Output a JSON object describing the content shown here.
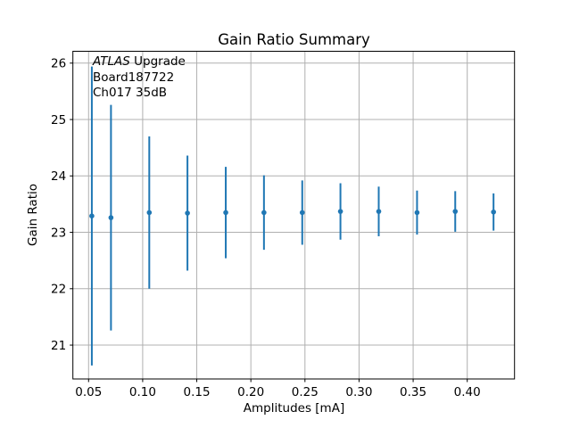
{
  "chart_data": {
    "type": "scatter",
    "title": "Gain Ratio Summary",
    "xlabel": "Amplitudes [mA]",
    "ylabel": "Gain Ratio",
    "annotation": {
      "experiment": "ATLAS",
      "experiment_suffix": " Upgrade",
      "board": "Board187722",
      "channel": "Ch017 35dB"
    },
    "x": [
      0.053,
      0.0707,
      0.1061,
      0.1414,
      0.1768,
      0.2121,
      0.2475,
      0.2828,
      0.3182,
      0.3536,
      0.3889,
      0.4243
    ],
    "y": [
      23.29,
      23.26,
      23.35,
      23.34,
      23.35,
      23.35,
      23.35,
      23.37,
      23.37,
      23.35,
      23.37,
      23.36
    ],
    "yerr": [
      2.65,
      2.0,
      1.35,
      1.02,
      0.81,
      0.66,
      0.57,
      0.5,
      0.44,
      0.39,
      0.36,
      0.33
    ],
    "xlim": [
      0.0355,
      0.4437
    ],
    "ylim": [
      20.4,
      26.21
    ],
    "xticks": {
      "values": [
        0.05,
        0.1,
        0.15,
        0.2,
        0.25,
        0.3,
        0.35,
        0.4
      ],
      "labels": [
        "0.05",
        "0.10",
        "0.15",
        "0.20",
        "0.25",
        "0.30",
        "0.35",
        "0.40"
      ]
    },
    "yticks": {
      "values": [
        21,
        22,
        23,
        24,
        25,
        26
      ],
      "labels": [
        "21",
        "22",
        "23",
        "24",
        "25",
        "26"
      ]
    },
    "grid": true,
    "legend": "none",
    "colors": {
      "series": "#1f77b4",
      "grid": "#b0b0b0",
      "axis": "#000000",
      "background": "#ffffff"
    }
  }
}
